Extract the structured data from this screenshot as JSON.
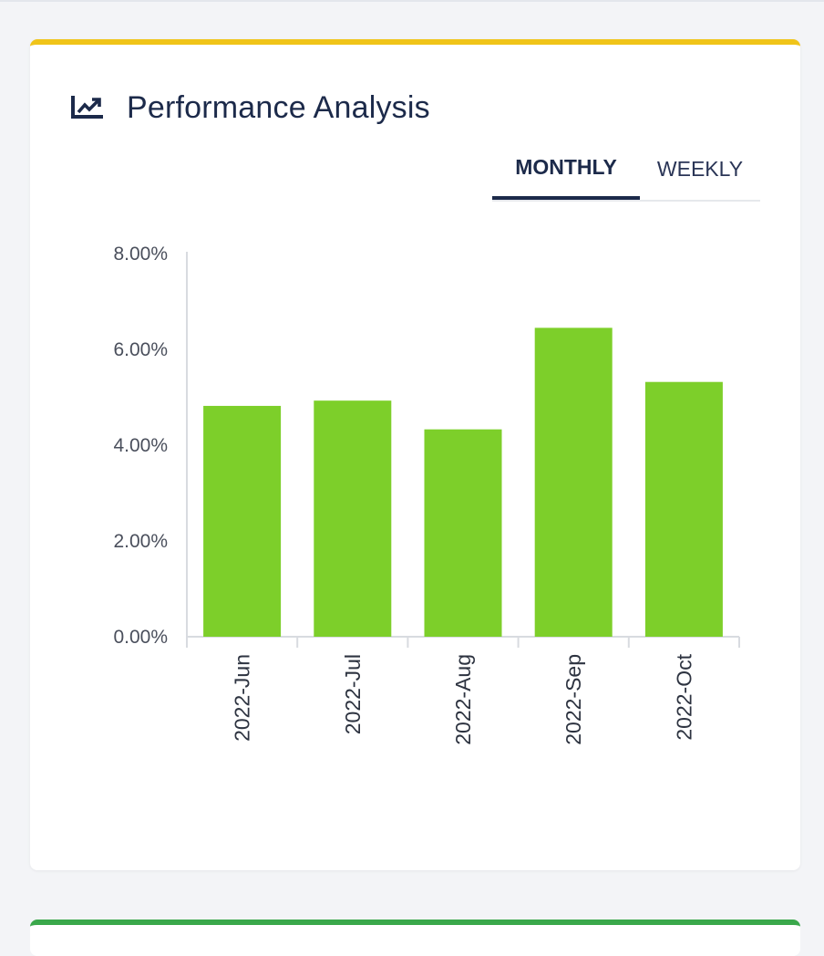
{
  "card": {
    "title": "Performance Analysis",
    "icon": "trending-up-chart-icon",
    "accent_color": "#f0c419"
  },
  "tabs": [
    {
      "label": "MONTHLY",
      "active": true
    },
    {
      "label": "WEEKLY",
      "active": false
    }
  ],
  "chart_data": {
    "type": "bar",
    "categories": [
      "2022-Jun",
      "2022-Jul",
      "2022-Aug",
      "2022-Sep",
      "2022-Oct"
    ],
    "values": [
      4.82,
      4.93,
      4.33,
      6.45,
      5.32
    ],
    "yticks": [
      "0.00%",
      "2.00%",
      "4.00%",
      "6.00%",
      "8.00%"
    ],
    "ylim": [
      0,
      8
    ],
    "bar_color": "#7dcf2a",
    "grid": false
  },
  "next_card": {
    "accent_color": "#3aa84b"
  }
}
